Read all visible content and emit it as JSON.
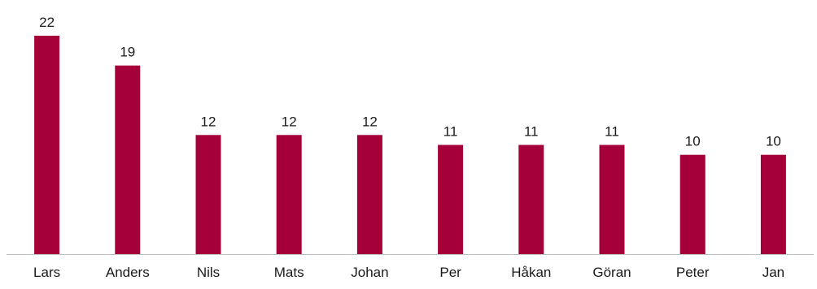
{
  "chart_data": {
    "type": "bar",
    "title": "",
    "xlabel": "",
    "ylabel": "",
    "categories": [
      "Lars",
      "Anders",
      "Nils",
      "Mats",
      "Johan",
      "Per",
      "Håkan",
      "Göran",
      "Peter",
      "Jan"
    ],
    "values": [
      22,
      19,
      12,
      12,
      12,
      11,
      11,
      11,
      10,
      10
    ],
    "value_labels": [
      "22",
      "19",
      "12",
      "12",
      "12",
      "11",
      "11",
      "11",
      "10",
      "10"
    ],
    "ylim": [
      0,
      22
    ],
    "grid": false,
    "legend": "none",
    "bar_color": "#a5003a",
    "axis_color": "#bfbfbf"
  }
}
